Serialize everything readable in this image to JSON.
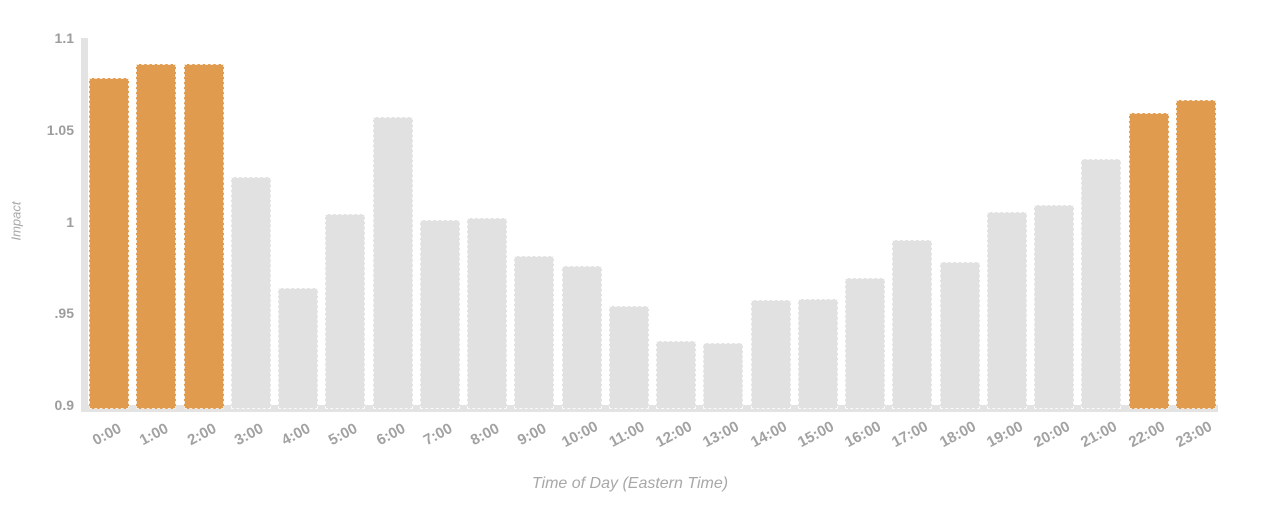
{
  "chart_data": {
    "type": "bar",
    "title": "",
    "xlabel": "Time of Day (Eastern Time)",
    "ylabel": "Impact",
    "ylim": [
      0.9,
      1.1
    ],
    "ytick_labels": [
      "1.1",
      "1.05",
      "1",
      ".95",
      "0.9"
    ],
    "ytick_values": [
      1.1,
      1.05,
      1.0,
      0.95,
      0.9
    ],
    "categories": [
      "0:00",
      "1:00",
      "2:00",
      "3:00",
      "4:00",
      "5:00",
      "6:00",
      "7:00",
      "8:00",
      "9:00",
      "10:00",
      "11:00",
      "12:00",
      "13:00",
      "14:00",
      "15:00",
      "16:00",
      "17:00",
      "18:00",
      "19:00",
      "20:00",
      "21:00",
      "22:00",
      "23:00"
    ],
    "values": [
      1.078,
      1.086,
      1.086,
      1.024,
      0.964,
      1.004,
      1.057,
      1.001,
      1.002,
      0.981,
      0.976,
      0.954,
      0.935,
      0.934,
      0.957,
      0.958,
      0.969,
      0.99,
      0.978,
      1.005,
      1.009,
      1.034,
      1.059,
      1.066
    ],
    "highlighted_categories": [
      "0:00",
      "1:00",
      "2:00",
      "22:00",
      "23:00"
    ],
    "grid": "off",
    "legend": "none",
    "colors": {
      "bar_default": "#e1e1e1",
      "bar_highlight": "#e09b4e",
      "axis_strip": "#e3e3e3",
      "tick_text": "#a2a2a2",
      "axis_title_text": "#a8a8a8",
      "background": "#ffffff"
    }
  }
}
